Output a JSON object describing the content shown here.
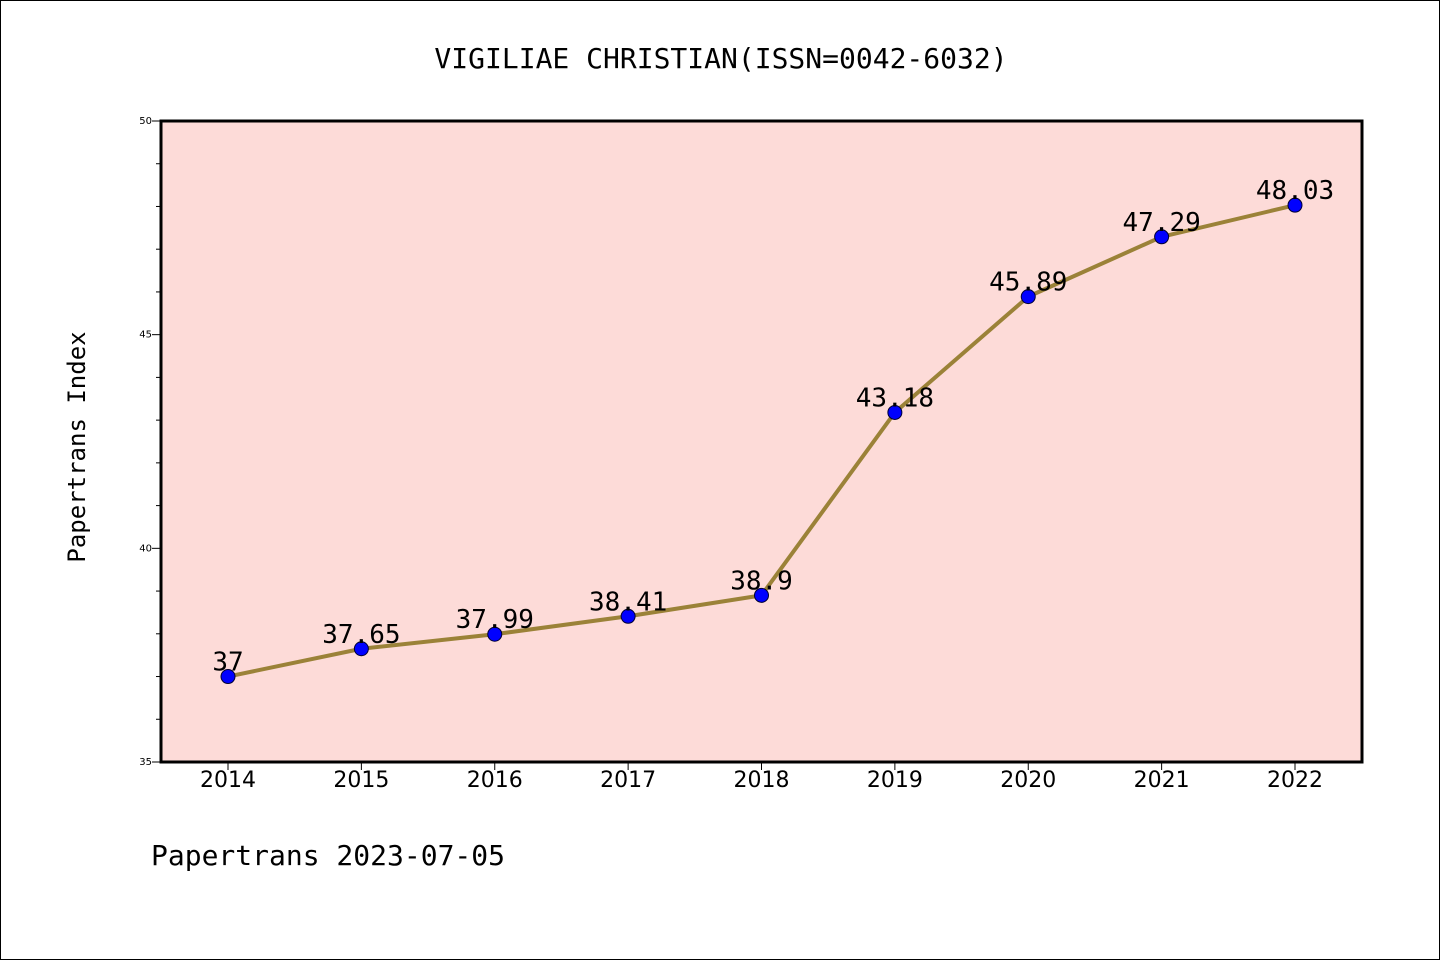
{
  "chart_data": {
    "type": "line",
    "title": "VIGILIAE CHRISTIAN(ISSN=0042-6032)",
    "xlabel": "",
    "ylabel": "Papertrans Index",
    "footer": "Papertrans 2023-07-05",
    "categories": [
      "2014",
      "2015",
      "2016",
      "2017",
      "2018",
      "2019",
      "2020",
      "2021",
      "2022"
    ],
    "series": [
      {
        "values": [
          37,
          37.65,
          37.99,
          38.41,
          38.9,
          43.18,
          45.89,
          47.29,
          48.03
        ],
        "labels": [
          "37",
          "37.65",
          "37.99",
          "38.41",
          "38.9",
          "43.18",
          "45.89",
          "47.29",
          "48.03"
        ]
      }
    ],
    "ylim": [
      35,
      50
    ],
    "yticks": [
      "35",
      "40",
      "45",
      "50"
    ],
    "grid": false,
    "colors": {
      "plot_background": "#fddbd8",
      "line": "#9b8238",
      "marker": "#0000ff"
    }
  }
}
